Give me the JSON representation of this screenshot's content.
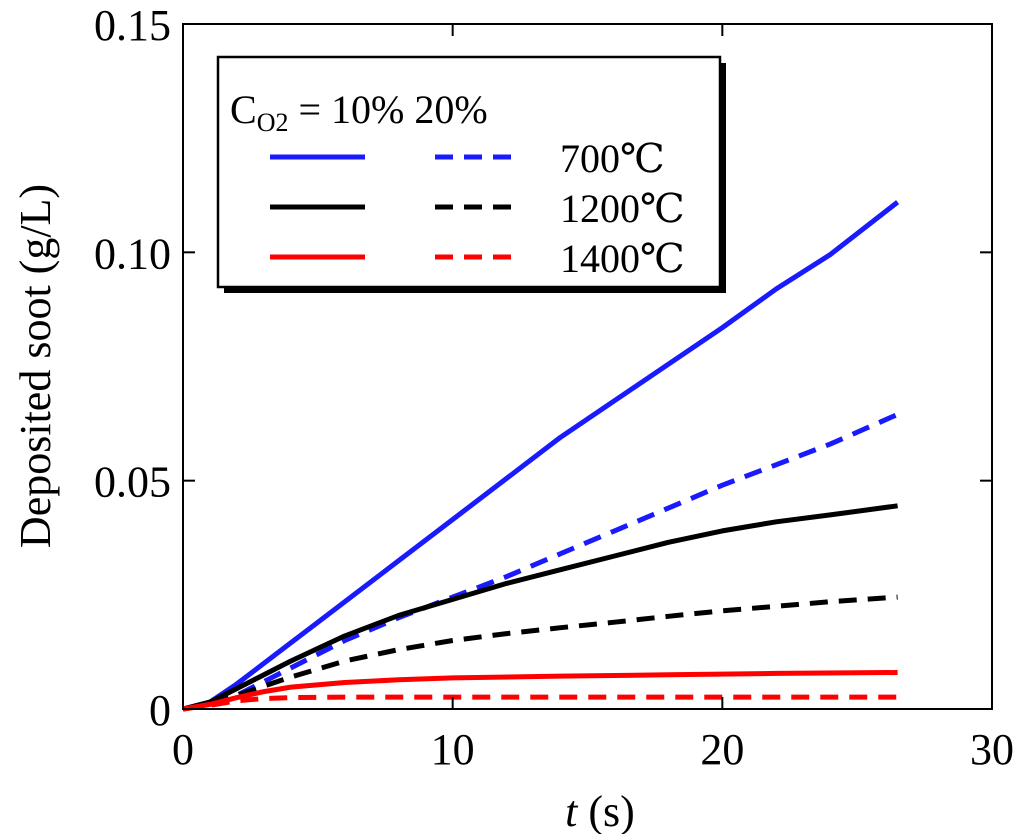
{
  "chart_data": {
    "type": "line",
    "title": "",
    "xlabel_italic": "t",
    "xlabel_rest": " (s)",
    "ylabel": "Deposited soot (g/L)",
    "xlim": [
      0,
      30
    ],
    "ylim": [
      0,
      0.15
    ],
    "x_ticks": [
      0,
      10,
      20,
      30
    ],
    "x_tick_labels": [
      "0",
      "10",
      "20",
      "30"
    ],
    "y_ticks": [
      0,
      0.05,
      0.1,
      0.15
    ],
    "y_tick_labels": [
      "0",
      "0.05",
      "0.10",
      "0.15"
    ],
    "legend": {
      "header_c": "C",
      "header_sub": "O2",
      "header_rest": " = 10%  20%",
      "entries": [
        {
          "label": "700℃",
          "color": "#1a1aff"
        },
        {
          "label": "1200℃",
          "color": "#000000"
        },
        {
          "label": "1400℃",
          "color": "#ff0000"
        }
      ]
    },
    "series": [
      {
        "name": "700℃ CO2=10%",
        "color": "#1a1aff",
        "dash": "solid",
        "x": [
          0,
          1,
          2,
          4,
          6,
          8,
          10,
          12,
          14,
          16,
          18,
          20,
          22,
          24,
          26.5
        ],
        "y": [
          0,
          0.0015,
          0.0055,
          0.0145,
          0.0235,
          0.0325,
          0.0415,
          0.0505,
          0.0595,
          0.0675,
          0.0755,
          0.0835,
          0.092,
          0.0995,
          0.111
        ]
      },
      {
        "name": "700℃ CO2=20%",
        "color": "#1a1aff",
        "dash": "dashed",
        "x": [
          0,
          1,
          2,
          4,
          6,
          8,
          10,
          12,
          14,
          16,
          18,
          20,
          22,
          24,
          26.5
        ],
        "y": [
          0,
          0.001,
          0.003,
          0.009,
          0.015,
          0.02,
          0.0245,
          0.029,
          0.034,
          0.039,
          0.044,
          0.049,
          0.0535,
          0.058,
          0.0645
        ]
      },
      {
        "name": "1200℃ CO2=10%",
        "color": "#000000",
        "dash": "solid",
        "x": [
          0,
          1,
          2,
          4,
          6,
          8,
          10,
          12,
          14,
          16,
          18,
          20,
          22,
          24,
          26.5
        ],
        "y": [
          0,
          0.0015,
          0.0045,
          0.0105,
          0.016,
          0.0205,
          0.024,
          0.0275,
          0.0305,
          0.0335,
          0.0365,
          0.039,
          0.041,
          0.0425,
          0.0445
        ]
      },
      {
        "name": "1200℃ CO2=20%",
        "color": "#000000",
        "dash": "dashed",
        "x": [
          0,
          1,
          2,
          4,
          6,
          8,
          10,
          12,
          14,
          16,
          18,
          20,
          22,
          24,
          26.5
        ],
        "y": [
          0,
          0.001,
          0.003,
          0.007,
          0.0105,
          0.013,
          0.015,
          0.0165,
          0.0178,
          0.019,
          0.0203,
          0.0215,
          0.0225,
          0.0235,
          0.0245
        ]
      },
      {
        "name": "1400℃ CO2=10%",
        "color": "#ff0000",
        "dash": "solid",
        "x": [
          0,
          1,
          2,
          3,
          4,
          6,
          8,
          10,
          14,
          18,
          22,
          26.5
        ],
        "y": [
          0,
          0.001,
          0.0025,
          0.0038,
          0.0048,
          0.0058,
          0.0064,
          0.0068,
          0.0072,
          0.0075,
          0.0078,
          0.008
        ]
      },
      {
        "name": "1400℃ CO2=20%",
        "color": "#ff0000",
        "dash": "dashed",
        "x": [
          0,
          1,
          2,
          3,
          4,
          6,
          10,
          14,
          18,
          22,
          26.5
        ],
        "y": [
          0,
          0.0008,
          0.0018,
          0.0023,
          0.0025,
          0.0026,
          0.0026,
          0.0026,
          0.0026,
          0.0026,
          0.0026
        ]
      }
    ]
  }
}
